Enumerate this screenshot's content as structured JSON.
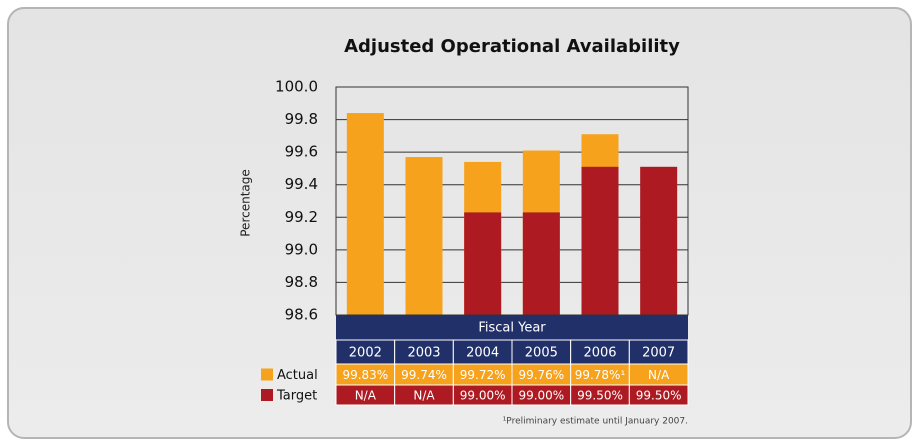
{
  "chart_data": {
    "type": "bar",
    "title": "Adjusted Operational Availability",
    "ylabel": "Percentage",
    "xlabel": "Fiscal Year",
    "categories": [
      "2002",
      "2003",
      "2004",
      "2005",
      "2006",
      "2007"
    ],
    "series": [
      {
        "name": "Actual",
        "color": "#f6a21c",
        "values": [
          99.84,
          99.57,
          99.54,
          99.61,
          99.71,
          null
        ]
      },
      {
        "name": "Target",
        "color": "#ad1a22",
        "values": [
          null,
          null,
          99.23,
          99.23,
          99.51,
          99.51
        ]
      }
    ],
    "ylim": [
      98.6,
      100
    ],
    "yticks": [
      98.6,
      98.8,
      {
        "value": 99,
        "label": "99.0"
      },
      99.2,
      99.4,
      99.6,
      99.8,
      {
        "value": 100,
        "label": "100.0"
      }
    ],
    "grid": true,
    "table": {
      "rows": [
        [
          "99.83%",
          "99.74%",
          "99.72%",
          "99.76%",
          "99.78%¹",
          "N/A"
        ],
        [
          "N/A",
          "N/A",
          "99.00%",
          "99.00%",
          "99.50%",
          "99.50%"
        ]
      ]
    },
    "footnote": "¹Preliminary estimate until January 2007."
  }
}
